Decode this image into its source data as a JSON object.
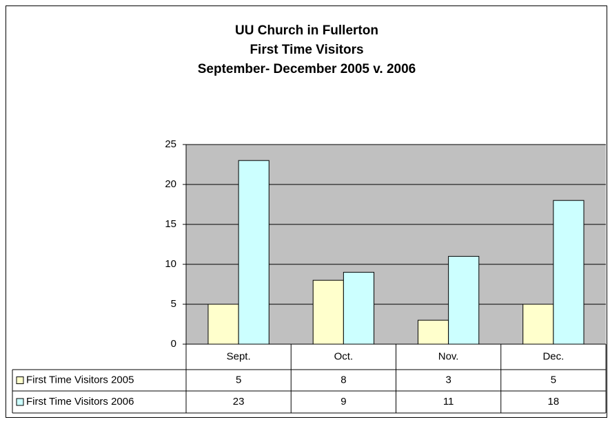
{
  "chart_data": {
    "type": "bar",
    "title": [
      "UU Church in Fullerton",
      "First Time Visitors",
      "September- December 2005 v. 2006"
    ],
    "categories": [
      "Sept.",
      "Oct.",
      "Nov.",
      "Dec."
    ],
    "series": [
      {
        "name": "First Time Visitors 2005",
        "color": "#ffffcc",
        "values": [
          5,
          8,
          3,
          5
        ]
      },
      {
        "name": "First Time Visitors 2006",
        "color": "#ccffff",
        "values": [
          23,
          9,
          11,
          18
        ]
      }
    ],
    "ylim": [
      0,
      25
    ],
    "yticks": [
      0,
      5,
      10,
      15,
      20,
      25
    ],
    "grid": true,
    "plot_background": "#c0c0c0"
  }
}
